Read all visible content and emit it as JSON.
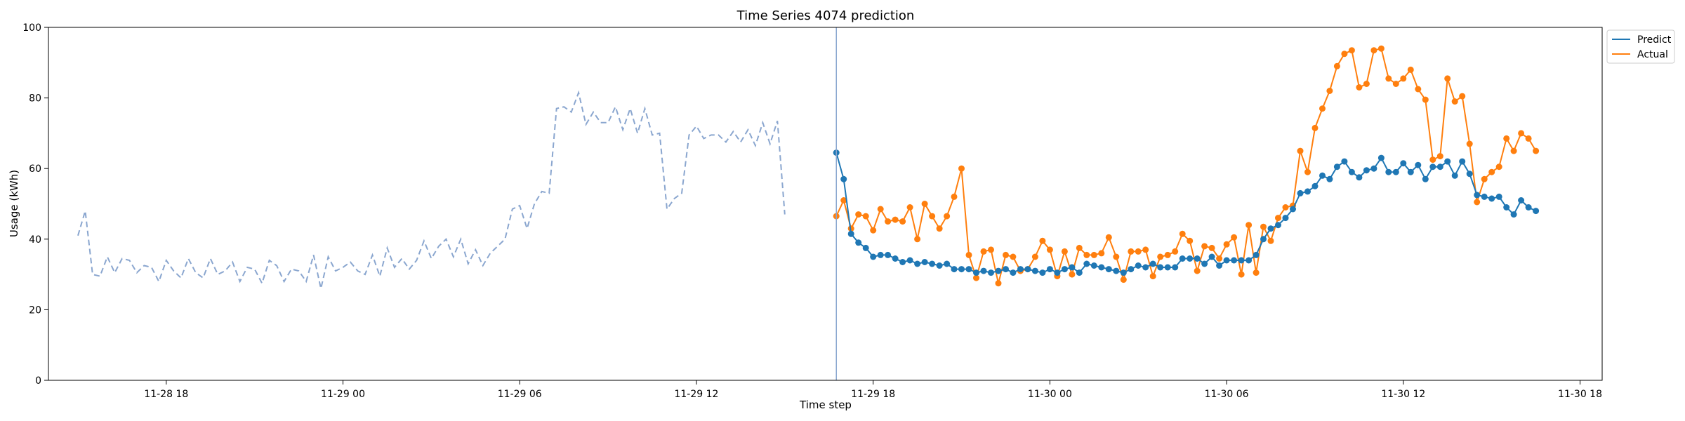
{
  "chart_data": {
    "type": "line",
    "title": "Time Series 4074 prediction",
    "xlabel": "Time step",
    "ylabel": "Usage (kWh)",
    "ylim": [
      0,
      100
    ],
    "xlim": [
      "2024-11-28 14:00",
      "2024-11-30 18:45"
    ],
    "x_ticks": [
      {
        "value": "2024-11-28 18:00",
        "label": "11-28 18"
      },
      {
        "value": "2024-11-29 00:00",
        "label": "11-29 00"
      },
      {
        "value": "2024-11-29 06:00",
        "label": "11-29 06"
      },
      {
        "value": "2024-11-29 12:00",
        "label": "11-29 12"
      },
      {
        "value": "2024-11-29 18:00",
        "label": "11-29 18"
      },
      {
        "value": "2024-11-30 00:00",
        "label": "11-30 00"
      },
      {
        "value": "2024-11-30 06:00",
        "label": "11-30 06"
      },
      {
        "value": "2024-11-30 12:00",
        "label": "11-30 12"
      },
      {
        "value": "2024-11-30 18:00",
        "label": "11-30 18"
      }
    ],
    "y_ticks": [
      0,
      20,
      40,
      60,
      80,
      100
    ],
    "forecast_start": "2024-11-29 16:45",
    "interval_minutes": 15,
    "legend": {
      "position": "top-right"
    },
    "colors": {
      "history": "#8aa6cf",
      "predict": "#1f77b4",
      "actual": "#ff7f0e",
      "marker_line": "#8aa6cf"
    },
    "history": {
      "start": "2024-11-28 15:00",
      "values": [
        41,
        48,
        30,
        29.5,
        35,
        30.5,
        34.5,
        34,
        30.5,
        32.5,
        32,
        28,
        34,
        31,
        29,
        34.5,
        30.5,
        29,
        34.5,
        30,
        31,
        33.5,
        28,
        32,
        31.5,
        27.5,
        34,
        32.5,
        28,
        31.5,
        31,
        28,
        35.5,
        26,
        35,
        31,
        32,
        33.5,
        31,
        30,
        35.5,
        29.5,
        37.5,
        32,
        34.5,
        31.5,
        34,
        39.5,
        34.5,
        38,
        40,
        35,
        40,
        33,
        37,
        32.5,
        36,
        38,
        40,
        48.5,
        49.5,
        43,
        50,
        53.5,
        53,
        77,
        77.5,
        76,
        81.5,
        72.5,
        76,
        73,
        73,
        77.5,
        71,
        77,
        70,
        77,
        69.5,
        70,
        48.5,
        51.5,
        53,
        69.5,
        72,
        68.5,
        69.5,
        69.5,
        67.5,
        70.5,
        67.5,
        71,
        66.5,
        73,
        67,
        73.5,
        47
      ]
    },
    "series": [
      {
        "name": "Predict",
        "start": "2024-11-29 16:45",
        "values": [
          64.5,
          57,
          41.5,
          39,
          37.5,
          35,
          35.5,
          35.5,
          34.5,
          33.5,
          34,
          33,
          33.5,
          33,
          32.5,
          33,
          31.5,
          31.5,
          31.5,
          30.5,
          31,
          30.5,
          31,
          31.5,
          30.5,
          31.5,
          31.5,
          31,
          30.5,
          31.5,
          30.5,
          31.5,
          32,
          30.5,
          33,
          32.5,
          32,
          31.5,
          31,
          30.5,
          31.5,
          32.5,
          32,
          33,
          32,
          32,
          32,
          34.5,
          34.5,
          34.5,
          33,
          35,
          32.5,
          34,
          34,
          34,
          34,
          35.5,
          40,
          43,
          44,
          46,
          48.5,
          53,
          53.5,
          55,
          58,
          57,
          60.5,
          62,
          59,
          57.5,
          59.5,
          60,
          63,
          59,
          59,
          61.5,
          59,
          61,
          57,
          60.5,
          60.5,
          62,
          58,
          62,
          58.5,
          52.5,
          52,
          51.5,
          52,
          49,
          47,
          51,
          49,
          48
        ]
      },
      {
        "name": "Actual",
        "start": "2024-11-29 16:45",
        "values": [
          46.5,
          51,
          43,
          47,
          46.5,
          42.5,
          48.5,
          45,
          45.5,
          45,
          49,
          40,
          50,
          46.5,
          43,
          46.5,
          52,
          60,
          35.5,
          29,
          36.5,
          37,
          27.5,
          35.5,
          35,
          31,
          31.5,
          35,
          39.5,
          37,
          29.5,
          36.5,
          30,
          37.5,
          35.5,
          35.5,
          36,
          40.5,
          35,
          28.5,
          36.5,
          36.5,
          37,
          29.5,
          35,
          35.5,
          36.5,
          41.5,
          39.5,
          31,
          38,
          37.5,
          34.5,
          38.5,
          40.5,
          30,
          44,
          30.5,
          43.5,
          39.5,
          46,
          49,
          49.5,
          65,
          59,
          71.5,
          77,
          82,
          89,
          92.5,
          93.5,
          83,
          84,
          93.5,
          94,
          85.5,
          84,
          85.5,
          88,
          82.5,
          79.5,
          62.5,
          63.5,
          85.5,
          79,
          80.5,
          67,
          50.5,
          57,
          59,
          60.5,
          68.5,
          65,
          70,
          68.5,
          65
        ]
      }
    ]
  }
}
